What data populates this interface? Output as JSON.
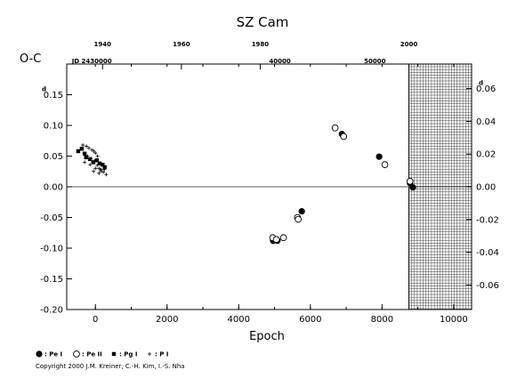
{
  "chart_data": {
    "type": "scatter",
    "title": "SZ Cam",
    "xlabel": "Epoch",
    "ylabel": "O-C",
    "xlim": [
      -800,
      10500
    ],
    "ylim": [
      -0.2,
      0.2
    ],
    "y2lim": [
      -0.075,
      0.075
    ],
    "x_ticks": [
      "0",
      "2000",
      "4000",
      "6000",
      "8000",
      "10000"
    ],
    "y_ticks": [
      "-0.20",
      "-0.15",
      "-0.10",
      "-0.05",
      "0.00",
      "0.05",
      "0.10",
      "0.15"
    ],
    "y_tick_values": [
      -0.2,
      -0.15,
      -0.1,
      -0.05,
      0.0,
      0.05,
      0.1,
      0.15
    ],
    "y_ticks_top_label": "0.15",
    "y_ticks_top_superscript": "d",
    "y2_ticks": [
      "-0.06",
      "-0.04",
      "-0.02",
      "0.00",
      "0.02",
      "0.04",
      "0.06"
    ],
    "y2_tick_values": [
      -0.06,
      -0.04,
      -0.02,
      0.0,
      0.02,
      0.04,
      0.06
    ],
    "y2_ticks_top_superscript": "d",
    "top_axis_years": [
      {
        "label": "1940",
        "epoch": 200
      },
      {
        "label": "1960",
        "epoch": 2400
      },
      {
        "label": "1980",
        "epoch": 4600
      },
      {
        "label": "2000",
        "epoch": 8750
      }
    ],
    "jd_labels": [
      {
        "label": "JD 2430000",
        "epoch": -100
      },
      {
        "label": "40000",
        "epoch": 5150
      },
      {
        "label": "50000",
        "epoch": 7800
      }
    ],
    "hatched_region": {
      "x_from": 8750,
      "x_to": 10500
    },
    "series": [
      {
        "name": ": Pe I",
        "marker": "filled-circle",
        "points": [
          [
            4960,
            -0.088
          ],
          [
            5080,
            -0.088
          ],
          [
            5760,
            -0.04
          ],
          [
            6880,
            0.086
          ],
          [
            7920,
            0.049
          ],
          [
            8780,
            0.006
          ],
          [
            8860,
            -0.001
          ]
        ]
      },
      {
        "name": ": Pe II",
        "marker": "open-circle",
        "points": [
          [
            4950,
            -0.083
          ],
          [
            5050,
            -0.086
          ],
          [
            5250,
            -0.083
          ],
          [
            5640,
            -0.05
          ],
          [
            5660,
            -0.053
          ],
          [
            6690,
            0.096
          ],
          [
            6930,
            0.082
          ],
          [
            8080,
            0.036
          ],
          [
            8780,
            0.009
          ]
        ]
      },
      {
        "name": ": Pg I",
        "marker": "filled-square",
        "points": [
          [
            -480,
            0.058
          ],
          [
            -380,
            0.062
          ],
          [
            -300,
            0.054
          ],
          [
            -260,
            0.048
          ],
          [
            -150,
            0.045
          ],
          [
            -60,
            0.04
          ],
          [
            40,
            0.043
          ],
          [
            120,
            0.038
          ],
          [
            200,
            0.036
          ],
          [
            260,
            0.032
          ]
        ]
      },
      {
        "name": ": P I",
        "marker": "plus",
        "points": [
          [
            -350,
            0.068
          ],
          [
            -250,
            0.066
          ],
          [
            -180,
            0.063
          ],
          [
            -100,
            0.06
          ],
          [
            -40,
            0.058
          ],
          [
            0,
            0.055
          ],
          [
            60,
            0.05
          ],
          [
            -220,
            0.05
          ],
          [
            -120,
            0.046
          ],
          [
            -30,
            0.042
          ],
          [
            50,
            0.035
          ],
          [
            100,
            0.03
          ],
          [
            160,
            0.028
          ],
          [
            220,
            0.024
          ],
          [
            300,
            0.02
          ],
          [
            -300,
            0.04
          ],
          [
            -150,
            0.036
          ],
          [
            0,
            0.03
          ],
          [
            150,
            0.026
          ],
          [
            250,
            0.028
          ],
          [
            -50,
            0.025
          ],
          [
            100,
            0.022
          ]
        ]
      }
    ],
    "grid": false,
    "zero_line": true,
    "legend_position": "bottom-left"
  },
  "copyright": "Copyright 2000 J.M. Kreiner, C.-H. Kim, I.-S. Nha"
}
